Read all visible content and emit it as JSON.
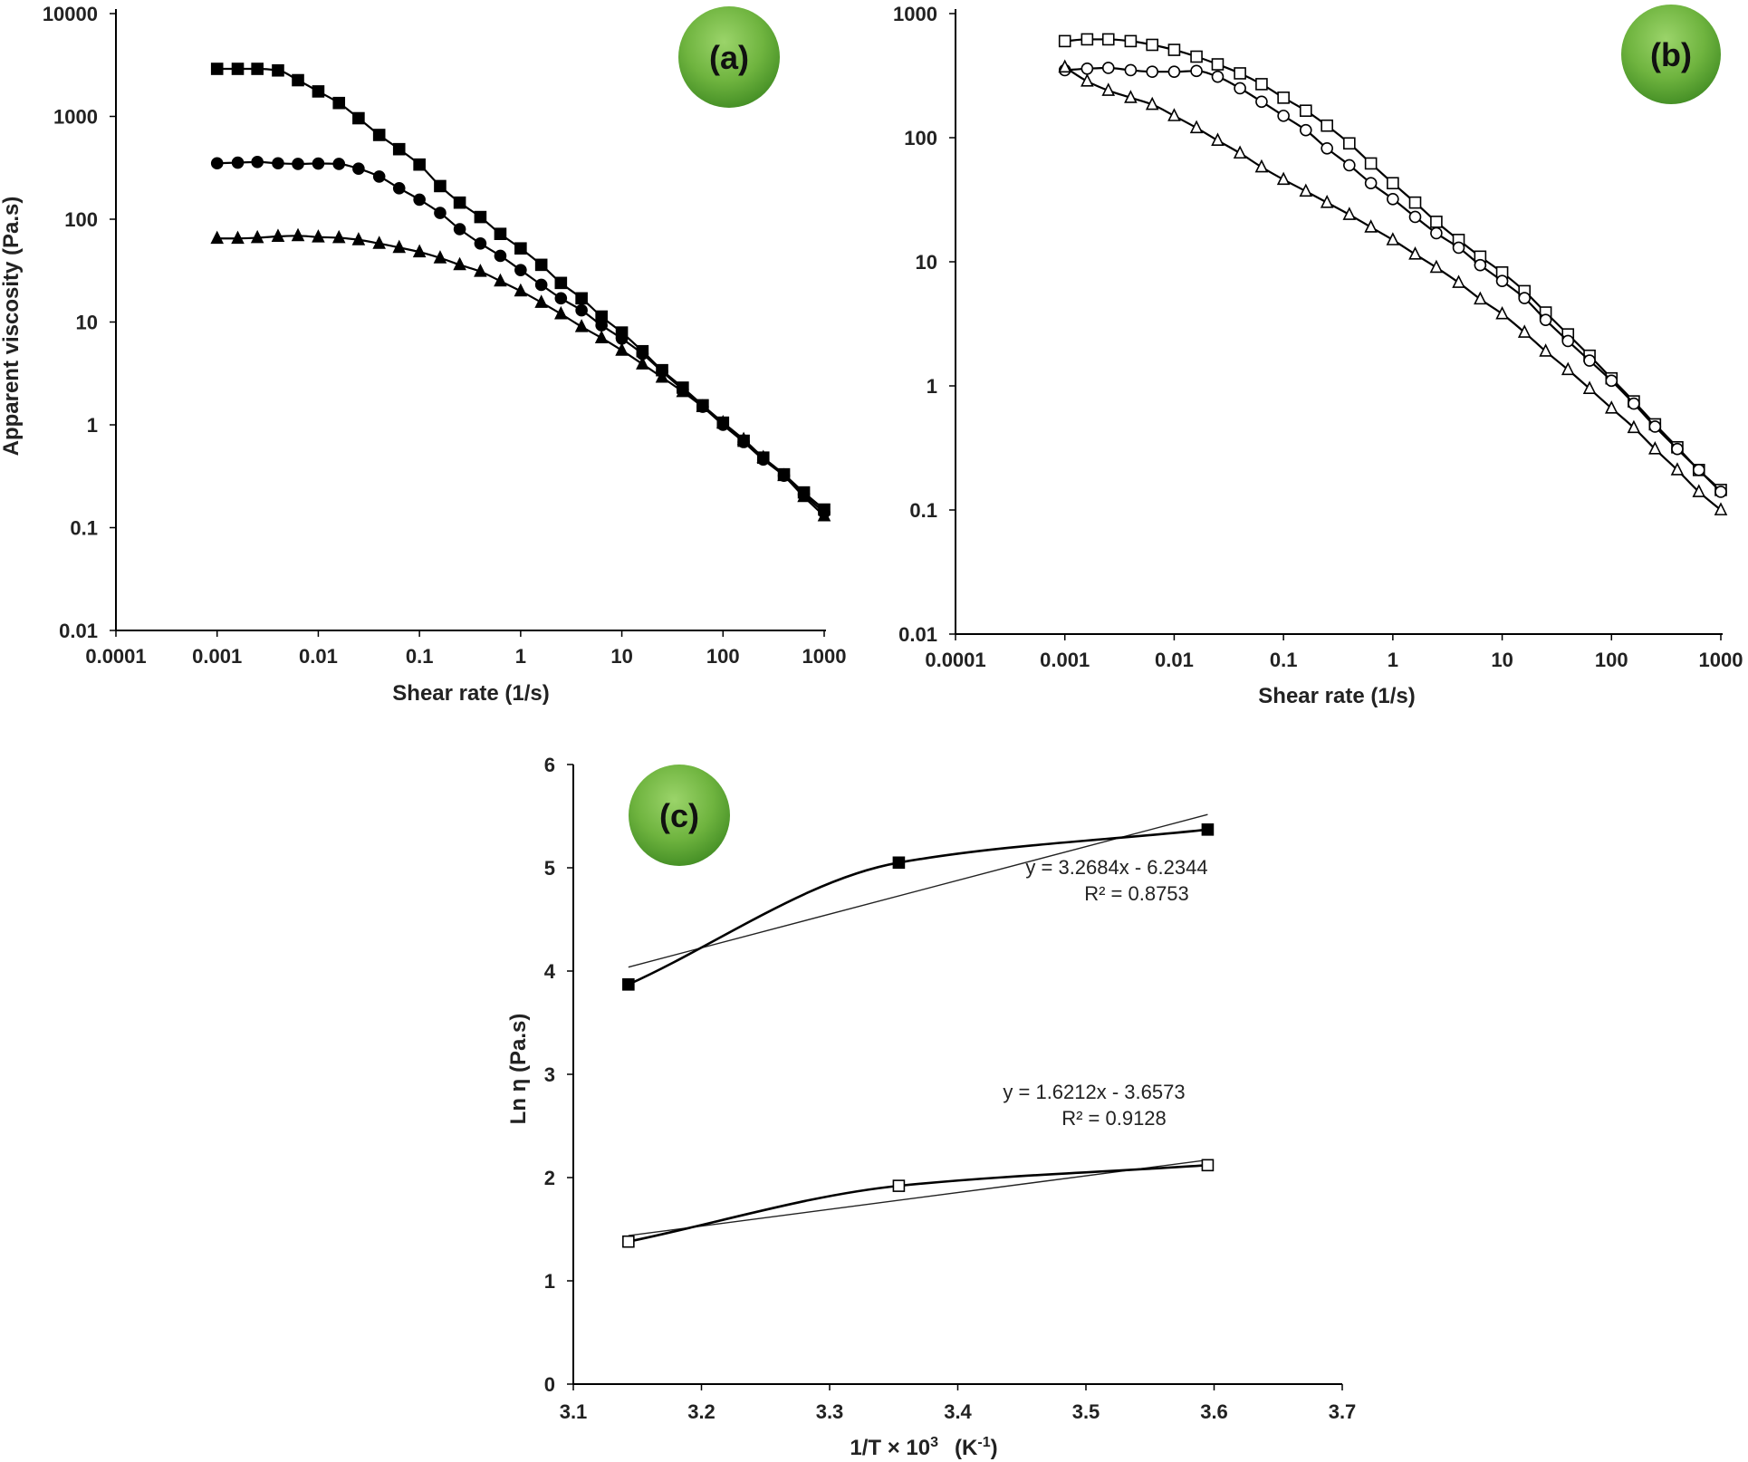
{
  "chart_data": [
    {
      "id": "a",
      "type": "line",
      "panel_label": "(a)",
      "xlabel": "Shear rate (1/s)",
      "ylabel": "Apparent viscosity (Pa.s)",
      "xscale": "log",
      "yscale": "log",
      "xlim": [
        0.0001,
        1000
      ],
      "ylim": [
        0.01,
        10000
      ],
      "x_ticks": [
        "0.0001",
        "0.001",
        "0.01",
        "0.1",
        "1",
        "10",
        "100",
        "1000"
      ],
      "y_ticks": [
        "0.01",
        "0.1",
        "1",
        "10",
        "100",
        "1000",
        "10000"
      ],
      "series": [
        {
          "name": "square-filled",
          "marker": "square",
          "filled": true,
          "x": [
            0.001,
            0.0016,
            0.0025,
            0.004,
            0.0063,
            0.01,
            0.016,
            0.025,
            0.04,
            0.063,
            0.1,
            0.16,
            0.25,
            0.4,
            0.63,
            1,
            1.6,
            2.5,
            4,
            6.3,
            10,
            16,
            25,
            40,
            63,
            100,
            160,
            250,
            400,
            630,
            1000
          ],
          "y": [
            2900,
            2900,
            2900,
            2800,
            2250,
            1750,
            1350,
            960,
            660,
            480,
            340,
            210,
            145,
            105,
            72,
            52,
            36,
            24,
            17,
            11.3,
            7.9,
            5.2,
            3.4,
            2.3,
            1.55,
            1.05,
            0.7,
            0.48,
            0.33,
            0.22,
            0.15
          ]
        },
        {
          "name": "circle-filled",
          "marker": "circle",
          "filled": true,
          "x": [
            0.001,
            0.0016,
            0.0025,
            0.004,
            0.0063,
            0.01,
            0.016,
            0.025,
            0.04,
            0.063,
            0.1,
            0.16,
            0.25,
            0.4,
            0.63,
            1,
            1.6,
            2.5,
            4,
            6.3,
            10,
            16,
            25,
            40,
            63,
            100,
            160,
            250,
            400,
            630,
            1000
          ],
          "y": [
            350,
            355,
            360,
            350,
            345,
            348,
            345,
            310,
            260,
            200,
            155,
            115,
            80,
            58,
            44,
            32,
            23,
            17,
            13,
            9.3,
            6.9,
            4.9,
            3.3,
            2.2,
            1.5,
            1.0,
            0.68,
            0.46,
            0.32,
            0.21,
            0.14
          ]
        },
        {
          "name": "triangle-filled",
          "marker": "triangle",
          "filled": true,
          "x": [
            0.001,
            0.0016,
            0.0025,
            0.004,
            0.0063,
            0.01,
            0.016,
            0.025,
            0.04,
            0.063,
            0.1,
            0.16,
            0.25,
            0.4,
            0.63,
            1,
            1.6,
            2.5,
            4,
            6.3,
            10,
            16,
            25,
            40,
            63,
            100,
            160,
            250,
            400,
            630,
            1000
          ],
          "y": [
            65,
            65,
            66,
            68,
            69,
            67,
            66,
            63,
            58,
            53,
            48,
            42,
            36,
            31,
            25,
            20,
            15.5,
            12,
            9,
            7,
            5.3,
            3.9,
            2.9,
            2.1,
            1.5,
            1.05,
            0.72,
            0.48,
            0.32,
            0.2,
            0.13
          ]
        }
      ]
    },
    {
      "id": "b",
      "type": "line",
      "panel_label": "(b)",
      "xlabel": "Shear rate (1/s)",
      "ylabel": "",
      "xscale": "log",
      "yscale": "log",
      "xlim": [
        0.0001,
        1000
      ],
      "ylim": [
        0.01,
        1000
      ],
      "x_ticks": [
        "0.0001",
        "0.001",
        "0.01",
        "0.1",
        "1",
        "10",
        "100",
        "1000"
      ],
      "y_ticks": [
        "0.01",
        "0.1",
        "1",
        "10",
        "100",
        "1000"
      ],
      "series": [
        {
          "name": "square-open",
          "marker": "square",
          "filled": false,
          "x": [
            0.001,
            0.0016,
            0.0025,
            0.004,
            0.0063,
            0.01,
            0.016,
            0.025,
            0.04,
            0.063,
            0.1,
            0.16,
            0.25,
            0.4,
            0.63,
            1,
            1.6,
            2.5,
            4,
            6.3,
            10,
            16,
            25,
            40,
            63,
            100,
            160,
            250,
            400,
            630,
            1000
          ],
          "y": [
            600,
            620,
            620,
            600,
            560,
            510,
            450,
            390,
            330,
            270,
            210,
            165,
            125,
            90,
            62,
            43,
            30,
            21,
            15,
            11,
            8.2,
            5.8,
            3.9,
            2.6,
            1.75,
            1.15,
            0.75,
            0.49,
            0.32,
            0.21,
            0.145
          ]
        },
        {
          "name": "circle-open",
          "marker": "circle",
          "filled": false,
          "x": [
            0.001,
            0.0016,
            0.0025,
            0.004,
            0.0063,
            0.01,
            0.016,
            0.025,
            0.04,
            0.063,
            0.1,
            0.16,
            0.25,
            0.4,
            0.63,
            1,
            1.6,
            2.5,
            4,
            6.3,
            10,
            16,
            25,
            40,
            63,
            100,
            160,
            250,
            400,
            630,
            1000
          ],
          "y": [
            350,
            360,
            365,
            350,
            340,
            340,
            345,
            310,
            250,
            195,
            150,
            115,
            82,
            60,
            43,
            32,
            23,
            17,
            13,
            9.4,
            7,
            5.1,
            3.4,
            2.3,
            1.6,
            1.1,
            0.72,
            0.47,
            0.31,
            0.21,
            0.14
          ]
        },
        {
          "name": "triangle-open",
          "marker": "triangle",
          "filled": false,
          "x": [
            0.001,
            0.0016,
            0.0025,
            0.004,
            0.0063,
            0.01,
            0.016,
            0.025,
            0.04,
            0.063,
            0.1,
            0.16,
            0.25,
            0.4,
            0.63,
            1,
            1.6,
            2.5,
            4,
            6.3,
            10,
            16,
            25,
            40,
            63,
            100,
            160,
            250,
            400,
            630,
            1000
          ],
          "y": [
            370,
            285,
            240,
            210,
            185,
            150,
            120,
            95,
            75,
            58,
            46,
            37,
            30,
            24,
            19,
            15,
            11.5,
            9,
            6.8,
            5,
            3.8,
            2.7,
            1.9,
            1.35,
            0.95,
            0.66,
            0.46,
            0.31,
            0.21,
            0.14,
            0.1
          ]
        }
      ]
    },
    {
      "id": "c",
      "type": "scatter",
      "panel_label": "(c)",
      "xlabel_main": "1/T × 10",
      "xlabel_sup": "3",
      "xlabel_unit": "(K",
      "xlabel_unit_sup": "-1",
      "xlabel_close": ")",
      "ylabel": "Ln η (Pa.s)",
      "xlim": [
        3.1,
        3.7
      ],
      "ylim": [
        0,
        6
      ],
      "x_ticks": [
        "3.1",
        "3.2",
        "3.3",
        "3.4",
        "3.5",
        "3.6",
        "3.7"
      ],
      "y_ticks": [
        "0",
        "1",
        "2",
        "3",
        "4",
        "5",
        "6"
      ],
      "series": [
        {
          "name": "square-filled",
          "marker": "square",
          "filled": true,
          "x": [
            3.143,
            3.354,
            3.595
          ],
          "y": [
            3.87,
            5.05,
            5.37
          ],
          "trendline": {
            "slope": 3.2684,
            "intercept": -6.2344
          },
          "equation": "y = 3.2684x - 6.2344",
          "r2": "R² = 0.8753"
        },
        {
          "name": "square-open",
          "marker": "square",
          "filled": false,
          "x": [
            3.143,
            3.354,
            3.595
          ],
          "y": [
            1.38,
            1.92,
            2.12
          ],
          "trendline": {
            "slope": 1.6212,
            "intercept": -3.6573
          },
          "equation": "y = 1.6212x - 3.6573",
          "r2": "R² = 0.9128"
        }
      ]
    }
  ]
}
